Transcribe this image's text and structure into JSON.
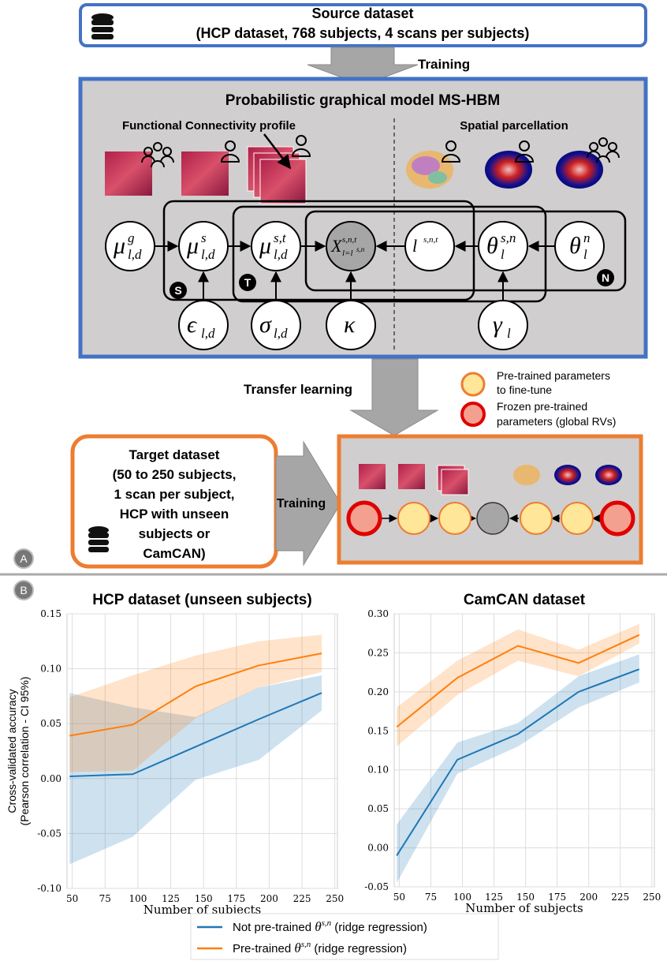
{
  "panel_labels": [
    "A",
    "B"
  ],
  "source": {
    "title": "Source dataset",
    "subtitle": "(HCP dataset, 768 subjects, 4 scans per subjects)"
  },
  "training_top": "Training",
  "model": {
    "title": "Probabilistic graphical model MS-HBM",
    "fc_label": "Functional Connectivity profile",
    "spatial_label": "Spatial parcellation",
    "nodes": [
      {
        "base": "μ",
        "sup": "g",
        "sub": "l,d"
      },
      {
        "base": "μ",
        "sup": "s",
        "sub": "l,d"
      },
      {
        "base": "μ",
        "sup": "s,t",
        "sub": "l,d"
      },
      {
        "base": "X",
        "sup": "s,n,t",
        "sub": "l=l",
        "sub_sup": "s,n"
      },
      {
        "base": "l",
        "sup": "s,n,t"
      },
      {
        "base": "θ",
        "sup": "s,n",
        "sub": "l"
      },
      {
        "base": "θ",
        "sup": "n",
        "sub": "l"
      },
      {
        "base": "ϵ",
        "sub": "l,d"
      },
      {
        "base": "σ",
        "sub": "l,d"
      },
      {
        "base": "κ"
      },
      {
        "base": "γ",
        "sub": "l"
      }
    ],
    "plates": [
      "S",
      "T",
      "N"
    ]
  },
  "transfer": "Transfer learning",
  "legend": {
    "fine_tune": [
      "Pre-trained parameters",
      "to fine-tune"
    ],
    "frozen": [
      "Frozen pre-trained",
      "parameters (global RVs)"
    ]
  },
  "target": {
    "lines": [
      "Target dataset",
      "(50 to 250 subjects,",
      "1 scan per subject,",
      "HCP with unseen",
      "subjects or",
      "CamCAN)"
    ]
  },
  "training_bottom": "Training",
  "chart_data": [
    {
      "type": "line",
      "title": "HCP dataset (unseen subjects)",
      "xlabel": "Number of subjects",
      "ylabel": [
        "Cross-validated accuracy",
        "(Pearson correlation - CI 95%)"
      ],
      "x": [
        48,
        96,
        144,
        192,
        240
      ],
      "xlim": [
        46,
        252
      ],
      "xticks": [
        50,
        75,
        100,
        125,
        150,
        175,
        200,
        225,
        250
      ],
      "ylim": [
        -0.1,
        0.15
      ],
      "yticks": [
        {
          "value": -0.1,
          "label": "-0.10"
        },
        -0.05,
        {
          "value": 0,
          "label": "0.00"
        },
        0.05,
        {
          "value": 0.1,
          "label": "0.10"
        },
        0.15
      ],
      "grid": true,
      "series": [
        {
          "name": [
            "Not pre-trained ",
            "θ",
            "s,n",
            " (ridge regression)"
          ],
          "color": "#1f77b4",
          "values": [
            0.002,
            0.004,
            0.029,
            0.054,
            0.078
          ],
          "lower": [
            -0.078,
            -0.053,
            -0.001,
            0.017,
            0.062
          ],
          "upper": [
            0.078,
            0.065,
            0.056,
            0.083,
            0.094
          ]
        },
        {
          "name": [
            "Pre-trained ",
            "θ",
            "s,n",
            " (ridge regression)"
          ],
          "color": "#ff7f0e",
          "values": [
            0.039,
            0.049,
            0.084,
            0.103,
            0.114
          ],
          "lower": [
            0.006,
            0.007,
            0.055,
            0.083,
            0.097
          ],
          "upper": [
            0.074,
            0.094,
            0.112,
            0.125,
            0.131
          ]
        }
      ]
    },
    {
      "type": "line",
      "title": "CamCAN dataset",
      "xlabel": "Number of subjects",
      "x": [
        48,
        96,
        144,
        192,
        240
      ],
      "xlim": [
        46,
        252
      ],
      "xticks": [
        50,
        75,
        100,
        125,
        150,
        175,
        200,
        225,
        250
      ],
      "ylim": [
        -0.05,
        0.3
      ],
      "yticks": [
        -0.05,
        {
          "value": 0,
          "label": "0.00"
        },
        0.05,
        {
          "value": 0.1,
          "label": "0.10"
        },
        0.15,
        {
          "value": 0.2,
          "label": "0.20"
        },
        0.25,
        {
          "value": 0.3,
          "label": "0.30"
        }
      ],
      "grid": true,
      "series": [
        {
          "name": [
            "Not pre-trained ",
            "θ",
            "s,n",
            " (ridge regression)"
          ],
          "color": "#1f77b4",
          "values": [
            -0.01,
            0.113,
            0.146,
            0.2,
            0.229
          ],
          "lower": [
            -0.045,
            0.095,
            0.13,
            0.18,
            0.212
          ],
          "upper": [
            0.03,
            0.135,
            0.16,
            0.22,
            0.248
          ]
        },
        {
          "name": [
            "Pre-trained ",
            "θ",
            "s,n",
            " (ridge regression)"
          ],
          "color": "#ff7f0e",
          "values": [
            0.155,
            0.218,
            0.259,
            0.237,
            0.273
          ],
          "lower": [
            0.13,
            0.196,
            0.24,
            0.22,
            0.262
          ],
          "upper": [
            0.18,
            0.24,
            0.28,
            0.254,
            0.287
          ]
        }
      ]
    }
  ]
}
